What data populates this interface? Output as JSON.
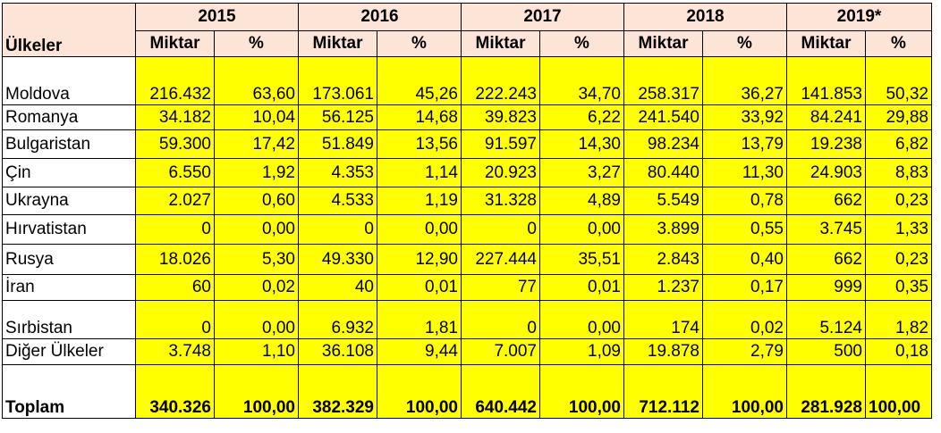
{
  "header": {
    "country_label": "Ülkeler",
    "years": [
      "2015",
      "2016",
      "2017",
      "2018",
      "2019*"
    ],
    "amount_label": "Miktar",
    "percent_label": "%"
  },
  "rows": [
    {
      "country": "Moldova",
      "values": [
        "216.432",
        "63,60",
        "173.061",
        "45,26",
        "222.243",
        "34,70",
        "258.317",
        "36,27",
        "141.853",
        "50,32"
      ]
    },
    {
      "country": "Romanya",
      "values": [
        "34.182",
        "10,04",
        "56.125",
        "14,68",
        "39.823",
        "6,22",
        "241.540",
        "33,92",
        "84.241",
        "29,88"
      ]
    },
    {
      "country": "Bulgaristan",
      "values": [
        "59.300",
        "17,42",
        "51.849",
        "13,56",
        "91.597",
        "14,30",
        "98.234",
        "13,79",
        "19.238",
        "6,82"
      ]
    },
    {
      "country": "Çin",
      "values": [
        "6.550",
        "1,92",
        "4.353",
        "1,14",
        "20.923",
        "3,27",
        "80.440",
        "11,30",
        "24.903",
        "8,83"
      ]
    },
    {
      "country": "Ukrayna",
      "values": [
        "2.027",
        "0,60",
        "4.533",
        "1,19",
        "31.328",
        "4,89",
        "5.549",
        "0,78",
        "662",
        "0,23"
      ]
    },
    {
      "country": "Hırvatistan",
      "values": [
        "0",
        "0,00",
        "0",
        "0,00",
        "0",
        "0,00",
        "3.899",
        "0,55",
        "3.745",
        "1,33"
      ]
    },
    {
      "country": "Rusya",
      "values": [
        "18.026",
        "5,30",
        "49.330",
        "12,90",
        "227.444",
        "35,51",
        "2.843",
        "0,40",
        "662",
        "0,23"
      ]
    },
    {
      "country": "İran",
      "values": [
        "60",
        "0,02",
        "40",
        "0,01",
        "77",
        "0,01",
        "1.237",
        "0,17",
        "999",
        "0,35"
      ]
    },
    {
      "country": "Sırbistan",
      "values": [
        "0",
        "0,00",
        "6.932",
        "1,81",
        "0",
        "0,00",
        "174",
        "0,02",
        "5.124",
        "1,82"
      ]
    },
    {
      "country": "Diğer Ülkeler",
      "values": [
        "3.748",
        "1,10",
        "36.108",
        "9,44",
        "7.007",
        "1,09",
        "19.878",
        "2,79",
        "500",
        "0,18"
      ]
    }
  ],
  "total": {
    "label": "Toplam",
    "values": [
      "340.326",
      "100,00",
      "382.329",
      "100,00",
      "640.442",
      "100,00",
      "712.112",
      "100,00",
      "281.928",
      "100,00"
    ]
  }
}
